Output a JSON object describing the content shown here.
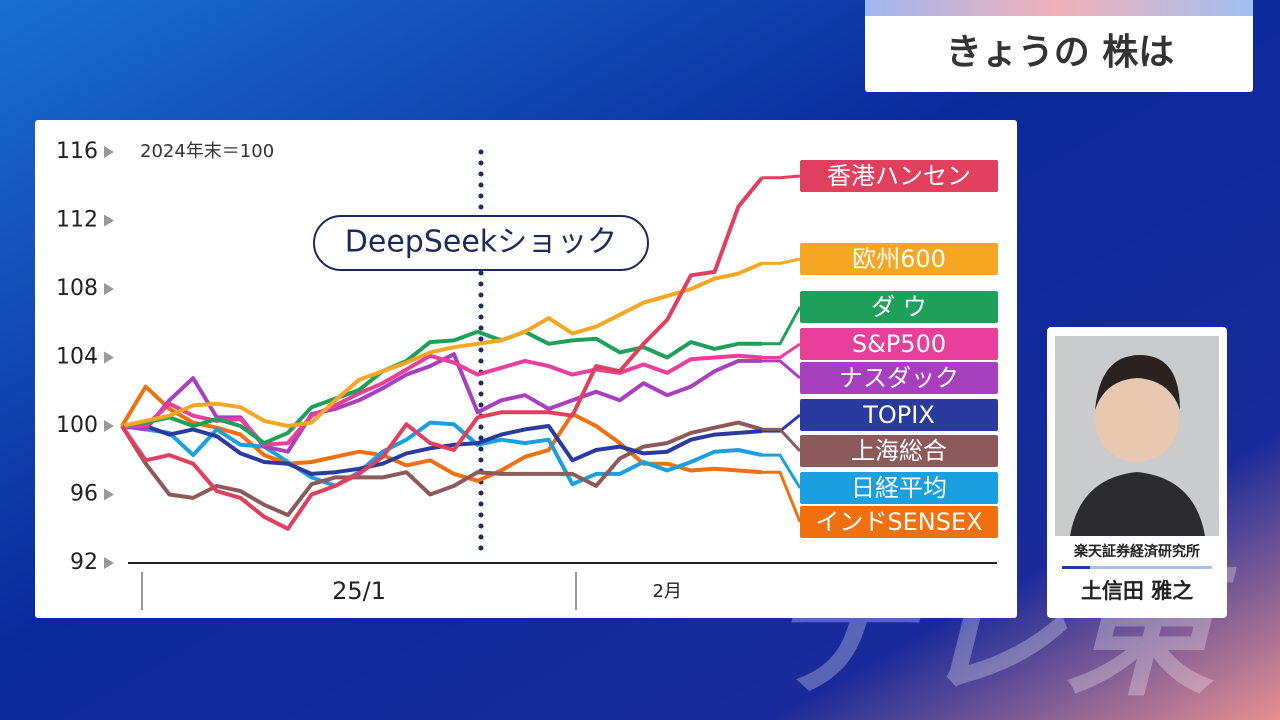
{
  "header": {
    "title": "きょうの 株は"
  },
  "commentator": {
    "affiliation": "楽天証券経済研究所",
    "name": "土信田 雅之"
  },
  "watermark": "テレ東",
  "chart_data": {
    "type": "line",
    "note": "2024年末＝100",
    "annotation": "DeepSeekショック",
    "categories": [
      null,
      null,
      null,
      null,
      null,
      null,
      null,
      null,
      null,
      null,
      "25/1",
      null,
      null,
      null,
      null,
      null,
      null,
      null,
      null,
      null,
      null,
      null,
      null,
      "2月",
      null,
      null,
      null,
      null
    ],
    "ylim": [
      92,
      116
    ],
    "yticks": [
      92,
      96,
      100,
      104,
      108,
      112,
      116
    ],
    "series": [
      {
        "name": "香港ハンセン",
        "color": "#e0405e",
        "values": [
          100,
          98,
          98.3,
          97.8,
          96.2,
          95.8,
          94.7,
          94,
          96,
          96.5,
          97.2,
          98.2,
          100.1,
          99,
          98.6,
          100.5,
          100.8,
          100.8,
          100.8,
          100.6,
          103.5,
          103.2,
          104.8,
          106.2,
          108.8,
          109,
          112.8,
          114.5
        ]
      },
      {
        "name": "欧州600",
        "color": "#f5a623",
        "values": [
          100,
          100.3,
          100.6,
          101.2,
          101.3,
          101.1,
          100.3,
          100,
          100.2,
          101.5,
          102.7,
          103.2,
          103.7,
          104.3,
          104.6,
          104.8,
          105,
          105.5,
          106.3,
          105.4,
          105.8,
          106.5,
          107.2,
          107.6,
          108,
          108.6,
          108.9,
          109.5
        ]
      },
      {
        "name": "ダ ウ",
        "color": "#1fa05a",
        "values": [
          100,
          100.2,
          100.5,
          100,
          100.4,
          100,
          99,
          99.6,
          101.1,
          101.6,
          102.1,
          103.2,
          103.8,
          104.9,
          105,
          105.5,
          105,
          105.5,
          104.8,
          105,
          105.1,
          104.3,
          104.6,
          104,
          104.9,
          104.5,
          104.8,
          104.8
        ]
      },
      {
        "name": "S&P500",
        "color": "#e8409a",
        "values": [
          100,
          100,
          101.3,
          100.6,
          100.3,
          100.4,
          98.9,
          99,
          100.6,
          101.2,
          101.9,
          102.5,
          103.3,
          104.1,
          103.7,
          103,
          103.4,
          103.8,
          103.5,
          103,
          103.3,
          103.1,
          103.6,
          103.1,
          103.9,
          104,
          104.1,
          104
        ]
      },
      {
        "name": "ナスダック",
        "color": "#a83fbf",
        "values": [
          100,
          99.8,
          101.5,
          102.8,
          100.5,
          100.5,
          98.8,
          98.5,
          100.7,
          101,
          101.5,
          102.2,
          103,
          103.5,
          104.2,
          100.8,
          101.5,
          101.8,
          101,
          101.5,
          102,
          101.5,
          102.5,
          101.8,
          102.3,
          103.2,
          103.8,
          103.8
        ]
      },
      {
        "name": "TOPIX",
        "color": "#2a3a9f",
        "values": [
          100,
          100,
          99.5,
          99.8,
          99.4,
          98.4,
          97.9,
          97.8,
          97.2,
          97.3,
          97.5,
          97.8,
          98.4,
          98.7,
          98.9,
          99,
          99.5,
          99.8,
          100,
          98,
          98.6,
          98.8,
          98.4,
          98.5,
          99.2,
          99.5,
          99.6,
          99.7
        ]
      },
      {
        "name": "上海総合",
        "color": "#8c5a5a",
        "values": [
          100,
          97.8,
          96,
          95.8,
          96.5,
          96.2,
          95.4,
          94.8,
          96.6,
          97,
          97,
          97,
          97.3,
          96,
          96.5,
          97.3,
          97.2,
          97.2,
          97.2,
          97.2,
          96.5,
          98.1,
          98.8,
          99,
          99.6,
          99.9,
          100.2,
          99.8
        ]
      },
      {
        "name": "日経平均",
        "color": "#1aa0e0",
        "values": [
          100,
          99.8,
          99.6,
          98.3,
          99.8,
          98.9,
          98.8,
          97.9,
          97,
          96.5,
          97.3,
          98.5,
          99.2,
          100.2,
          100.1,
          98.9,
          99.2,
          99,
          99.2,
          96.6,
          97.2,
          97.2,
          97.9,
          97.4,
          97.9,
          98.5,
          98.6,
          98.3
        ]
      },
      {
        "name": "インドSENSEX",
        "color": "#f07010",
        "values": [
          100,
          102.3,
          101,
          100.2,
          99.9,
          99.5,
          98.3,
          97.8,
          97.9,
          98.2,
          98.5,
          98.3,
          97.7,
          98,
          97.2,
          96.8,
          97.4,
          98.2,
          98.6,
          100.7,
          100,
          99,
          97.8,
          97.8,
          97.4,
          97.5,
          97.4,
          97.3
        ]
      }
    ]
  }
}
